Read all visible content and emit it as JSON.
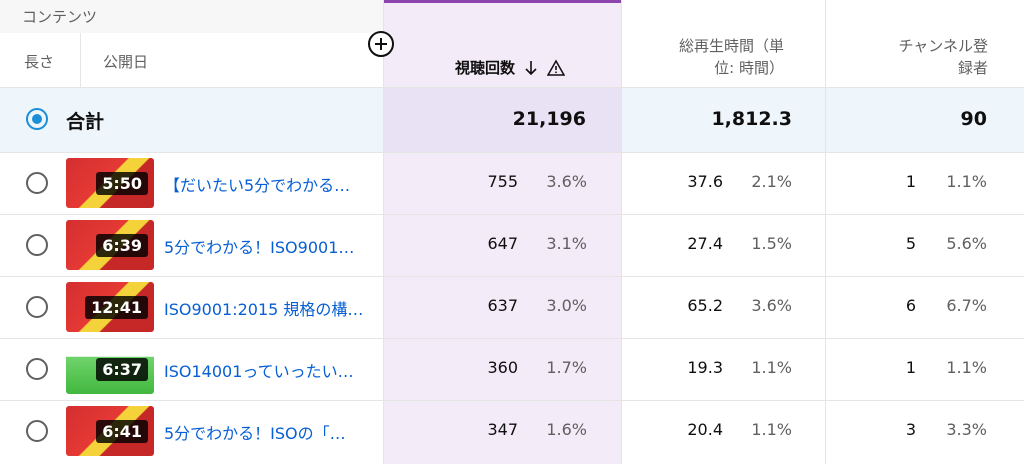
{
  "header": {
    "section_label": "コンテンツ",
    "col_length": "長さ",
    "col_published": "公開日",
    "col_views": "視聴回数",
    "col_watch_time_line1": "総再生時間（単",
    "col_watch_time_line2": "位: 時間）",
    "col_subscribers_line1": "チャンネル登",
    "col_subscribers_line2": "録者",
    "sort_icon": "arrow-down-icon",
    "warning_icon": "warning-icon",
    "add_icon": "plus-circle-icon"
  },
  "total": {
    "label": "合計",
    "views": "21,196",
    "watch_time": "1,812.3",
    "subscribers": "90"
  },
  "rows": [
    {
      "duration": "5:50",
      "title": "【だいたい5分でわかる…",
      "views": "755",
      "views_pct": "3.6%",
      "watch_time": "37.6",
      "watch_pct": "2.1%",
      "subs": "1",
      "subs_pct": "1.1%"
    },
    {
      "duration": "6:39",
      "title": "5分でわかる！ISO9001…",
      "views": "647",
      "views_pct": "3.1%",
      "watch_time": "27.4",
      "watch_pct": "1.5%",
      "subs": "5",
      "subs_pct": "5.6%"
    },
    {
      "duration": "12:41",
      "title": "ISO9001:2015 規格の構…",
      "views": "637",
      "views_pct": "3.0%",
      "watch_time": "65.2",
      "watch_pct": "3.6%",
      "subs": "6",
      "subs_pct": "6.7%"
    },
    {
      "duration": "6:37",
      "title": "ISO14001っていったい…",
      "views": "360",
      "views_pct": "1.7%",
      "watch_time": "19.3",
      "watch_pct": "1.1%",
      "subs": "1",
      "subs_pct": "1.1%"
    },
    {
      "duration": "6:41",
      "title": "5分でわかる！ISOの「…",
      "views": "347",
      "views_pct": "1.6%",
      "watch_time": "20.4",
      "watch_pct": "1.1%",
      "subs": "3",
      "subs_pct": "3.3%"
    }
  ],
  "colors": {
    "accent": "#8e44ad",
    "link": "#065fd4",
    "radio_selected": "#1a8fd8"
  }
}
